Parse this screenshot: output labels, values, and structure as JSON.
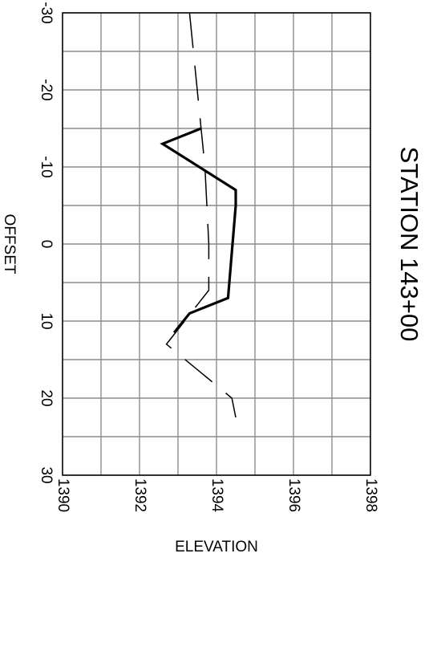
{
  "chart_data": {
    "type": "line",
    "title": "STATION 143+00",
    "xlabel": "ELEVATION",
    "ylabel": "OFFSET",
    "xlim": [
      1390,
      1398
    ],
    "ylim": [
      -30,
      30
    ],
    "x_ticks": [
      "1390",
      "1392",
      "1394",
      "1396",
      "1398"
    ],
    "y_ticks": [
      "-30",
      "-20",
      "-10",
      "0",
      "10",
      "20",
      "30"
    ],
    "grid": true,
    "series": [
      {
        "style": "solid-bold",
        "color": "#000000",
        "points": [
          {
            "elevation": 1393.6,
            "offset": -15
          },
          {
            "elevation": 1392.6,
            "offset": -13
          },
          {
            "elevation": 1394.5,
            "offset": -7
          },
          {
            "elevation": 1394.5,
            "offset": -5
          },
          {
            "elevation": 1394.3,
            "offset": 7
          },
          {
            "elevation": 1393.3,
            "offset": 9
          },
          {
            "elevation": 1392.9,
            "offset": 11.5
          }
        ]
      },
      {
        "style": "dashed",
        "color": "#000000",
        "points": [
          {
            "elevation": 1393.3,
            "offset": -30
          },
          {
            "elevation": 1393.5,
            "offset": -20
          },
          {
            "elevation": 1393.7,
            "offset": -10
          },
          {
            "elevation": 1393.8,
            "offset": 0
          },
          {
            "elevation": 1393.8,
            "offset": 6
          },
          {
            "elevation": 1392.7,
            "offset": 13
          },
          {
            "elevation": 1394.4,
            "offset": 20
          },
          {
            "elevation": 1394.5,
            "offset": 22.5
          }
        ]
      }
    ]
  }
}
